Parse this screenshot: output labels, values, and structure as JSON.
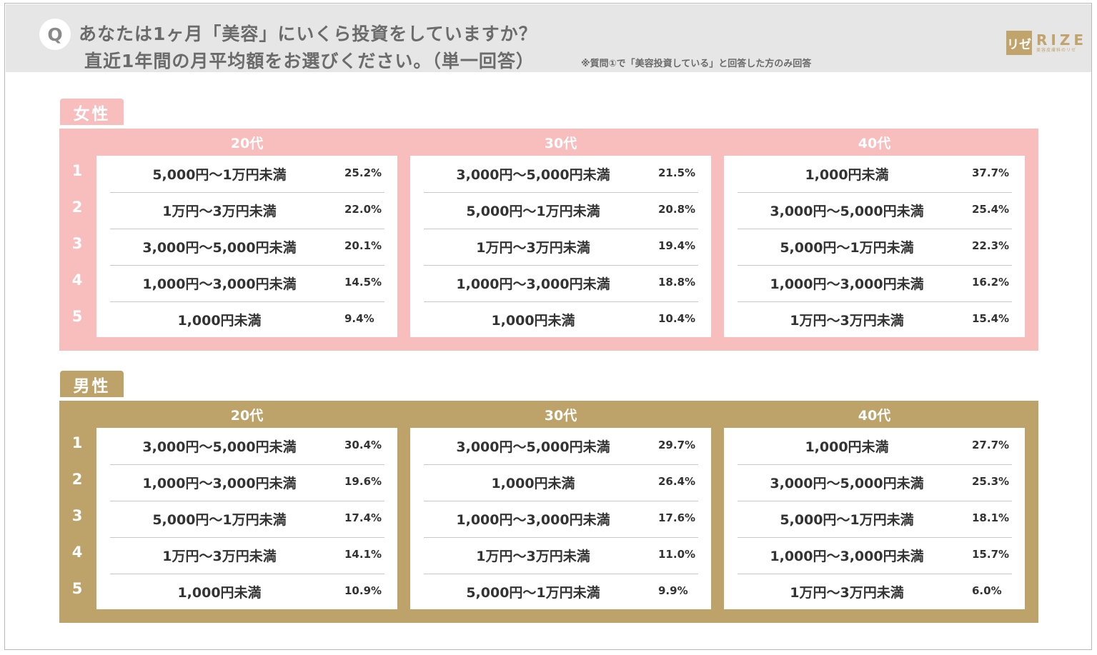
{
  "header": {
    "q_badge": "Q",
    "question_line1": "あなたは1ヶ月「美容」にいくら投資をしていますか？",
    "question_line2": "直近1年間の月平均額をお選びください。（単一回答）",
    "note": "※質問①で「美容投資している」と回答した方のみ回答",
    "logo_box": "リゼ",
    "logo_word": "RIZE",
    "logo_sub": "美容皮膚科のリゼ"
  },
  "colors": {
    "female": "#f8bdbd",
    "male": "#bda36a",
    "header_bg": "#e6e6e6"
  },
  "ranks": [
    "1",
    "2",
    "3",
    "4",
    "5"
  ],
  "chart_data": {
    "type": "table",
    "title": "あなたは1ヶ月「美容」にいくら投資をしていますか？直近1年間の月平均額をお選びください。（単一回答）",
    "sections": [
      {
        "name": "女性",
        "groups": [
          {
            "name": "20代",
            "items": [
              {
                "label": "5,000円～1万円未満",
                "value": "25.2%"
              },
              {
                "label": "1万円～3万円未満",
                "value": "22.0%"
              },
              {
                "label": "3,000円～5,000円未満",
                "value": "20.1%"
              },
              {
                "label": "1,000円～3,000円未満",
                "value": "14.5%"
              },
              {
                "label": "1,000円未満",
                "value": "9.4%"
              }
            ]
          },
          {
            "name": "30代",
            "items": [
              {
                "label": "3,000円～5,000円未満",
                "value": "21.5%"
              },
              {
                "label": "5,000円～1万円未満",
                "value": "20.8%"
              },
              {
                "label": "1万円～3万円未満",
                "value": "19.4%"
              },
              {
                "label": "1,000円～3,000円未満",
                "value": "18.8%"
              },
              {
                "label": "1,000円未満",
                "value": "10.4%"
              }
            ]
          },
          {
            "name": "40代",
            "items": [
              {
                "label": "1,000円未満",
                "value": "37.7%"
              },
              {
                "label": "3,000円～5,000円未満",
                "value": "25.4%"
              },
              {
                "label": "5,000円～1万円未満",
                "value": "22.3%"
              },
              {
                "label": "1,000円～3,000円未満",
                "value": "16.2%"
              },
              {
                "label": "1万円～3万円未満",
                "value": "15.4%"
              }
            ]
          }
        ]
      },
      {
        "name": "男性",
        "groups": [
          {
            "name": "20代",
            "items": [
              {
                "label": "3,000円～5,000円未満",
                "value": "30.4%"
              },
              {
                "label": "1,000円～3,000円未満",
                "value": "19.6%"
              },
              {
                "label": "5,000円～1万円未満",
                "value": "17.4%"
              },
              {
                "label": "1万円～3万円未満",
                "value": "14.1%"
              },
              {
                "label": "1,000円未満",
                "value": "10.9%"
              }
            ]
          },
          {
            "name": "30代",
            "items": [
              {
                "label": "3,000円～5,000円未満",
                "value": "29.7%"
              },
              {
                "label": "1,000円未満",
                "value": "26.4%"
              },
              {
                "label": "1,000円～3,000円未満",
                "value": "17.6%"
              },
              {
                "label": "1万円～3万円未満",
                "value": "11.0%"
              },
              {
                "label": "5,000円～1万円未満",
                "value": "9.9%"
              }
            ]
          },
          {
            "name": "40代",
            "items": [
              {
                "label": "1,000円未満",
                "value": "27.7%"
              },
              {
                "label": "3,000円～5,000円未満",
                "value": "25.3%"
              },
              {
                "label": "5,000円～1万円未満",
                "value": "18.1%"
              },
              {
                "label": "1,000円～3,000円未満",
                "value": "15.7%"
              },
              {
                "label": "1万円～3万円未満",
                "value": "6.0%"
              }
            ]
          }
        ]
      }
    ]
  }
}
